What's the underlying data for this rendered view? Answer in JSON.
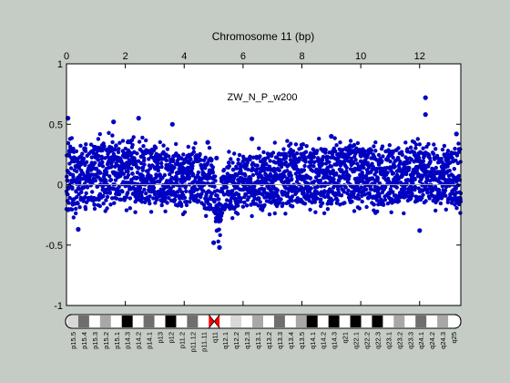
{
  "chart_data": {
    "type": "scatter",
    "title": "Chromosome 11 (bp)",
    "annotation": "ZW_N_P_w200",
    "x_axis": {
      "position": "top",
      "range": [
        0,
        13.4
      ],
      "ticks": [
        0,
        2,
        4,
        6,
        8,
        10,
        12
      ]
    },
    "y_axis": {
      "range": [
        -1,
        1
      ],
      "ticks": [
        -1,
        -0.5,
        0,
        0.5,
        1
      ]
    },
    "zero_line": true,
    "marker_color": "#0000c0",
    "zero_line_color": "#a0a0a0",
    "scatter_profile": {
      "x": [
        0.0,
        0.3,
        0.7,
        1.0,
        1.5,
        2.0,
        2.5,
        3.0,
        3.5,
        4.0,
        4.5,
        4.9,
        5.05,
        5.15,
        5.25,
        5.5,
        6.0,
        6.5,
        7.0,
        7.5,
        8.0,
        8.5,
        9.0,
        9.5,
        10.0,
        10.5,
        11.0,
        11.5,
        12.0,
        12.5,
        13.0,
        13.3
      ],
      "upper": [
        0.32,
        0.28,
        0.3,
        0.33,
        0.35,
        0.36,
        0.34,
        0.3,
        0.27,
        0.26,
        0.26,
        0.22,
        0.1,
        -0.1,
        0.08,
        0.2,
        0.22,
        0.24,
        0.27,
        0.28,
        0.3,
        0.3,
        0.3,
        0.31,
        0.3,
        0.29,
        0.27,
        0.28,
        0.29,
        0.27,
        0.27,
        0.3
      ],
      "lower": [
        -0.2,
        -0.22,
        -0.18,
        -0.15,
        -0.14,
        -0.14,
        -0.14,
        -0.15,
        -0.16,
        -0.17,
        -0.17,
        -0.2,
        -0.3,
        -0.45,
        -0.3,
        -0.2,
        -0.18,
        -0.18,
        -0.17,
        -0.16,
        -0.15,
        -0.15,
        -0.15,
        -0.15,
        -0.15,
        -0.15,
        -0.15,
        -0.15,
        -0.14,
        -0.14,
        -0.14,
        -0.18
      ]
    },
    "outliers": [
      {
        "x": 0.05,
        "y": 0.55
      },
      {
        "x": 0.4,
        "y": -0.37
      },
      {
        "x": 1.6,
        "y": 0.52
      },
      {
        "x": 2.45,
        "y": 0.55
      },
      {
        "x": 3.6,
        "y": 0.5
      },
      {
        "x": 4.8,
        "y": 0.35
      },
      {
        "x": 5.0,
        "y": -0.48
      },
      {
        "x": 5.1,
        "y": 0.22
      },
      {
        "x": 5.2,
        "y": -0.52
      },
      {
        "x": 6.3,
        "y": 0.38
      },
      {
        "x": 9.0,
        "y": 0.4
      },
      {
        "x": 12.2,
        "y": 0.72
      },
      {
        "x": 12.2,
        "y": 0.58
      },
      {
        "x": 12.0,
        "y": -0.38
      },
      {
        "x": 13.25,
        "y": 0.42
      }
    ]
  },
  "ideogram": {
    "bands": [
      {
        "label": "p15.5",
        "stain": "gpos25"
      },
      {
        "label": "p15.4",
        "stain": "gpos75"
      },
      {
        "label": "p15.3",
        "stain": "gneg"
      },
      {
        "label": "p15.2",
        "stain": "gpos50"
      },
      {
        "label": "p15.1",
        "stain": "gneg"
      },
      {
        "label": "p14.3",
        "stain": "gpos100"
      },
      {
        "label": "p14.2",
        "stain": "gneg"
      },
      {
        "label": "p14.1",
        "stain": "gpos75"
      },
      {
        "label": "p13",
        "stain": "gneg"
      },
      {
        "label": "p12",
        "stain": "gpos100"
      },
      {
        "label": "p11.2",
        "stain": "gneg"
      },
      {
        "label": "p11.12",
        "stain": "gpos75"
      },
      {
        "label": "p11.11",
        "stain": "gneg"
      },
      {
        "label": "q11",
        "stain": "acen"
      },
      {
        "label": "q12.1",
        "stain": "gneg"
      },
      {
        "label": "q12.2",
        "stain": "gpos25"
      },
      {
        "label": "q12.3",
        "stain": "gneg"
      },
      {
        "label": "q13.1",
        "stain": "gpos50"
      },
      {
        "label": "q13.2",
        "stain": "gneg"
      },
      {
        "label": "q13.3",
        "stain": "gpos75"
      },
      {
        "label": "q13.4",
        "stain": "gneg"
      },
      {
        "label": "q13.5",
        "stain": "gpos50"
      },
      {
        "label": "q14.1",
        "stain": "gpos100"
      },
      {
        "label": "q14.2",
        "stain": "gneg"
      },
      {
        "label": "q14.3",
        "stain": "gpos100"
      },
      {
        "label": "q21",
        "stain": "gneg"
      },
      {
        "label": "q22.1",
        "stain": "gpos100"
      },
      {
        "label": "q22.2",
        "stain": "gneg"
      },
      {
        "label": "q22.3",
        "stain": "gpos100"
      },
      {
        "label": "q23.1",
        "stain": "gneg"
      },
      {
        "label": "q23.2",
        "stain": "gpos50"
      },
      {
        "label": "q23.3",
        "stain": "gneg"
      },
      {
        "label": "q24.1",
        "stain": "gpos75"
      },
      {
        "label": "q24.2",
        "stain": "gneg"
      },
      {
        "label": "q24.3",
        "stain": "gpos50"
      },
      {
        "label": "q25",
        "stain": "gneg"
      }
    ],
    "stain_colors": {
      "gneg": "#ffffff",
      "gpos25": "#d8d8d8",
      "gpos50": "#a8a8a8",
      "gpos75": "#6e6e6e",
      "gpos100": "#000000",
      "acen": "#ff0000"
    }
  }
}
